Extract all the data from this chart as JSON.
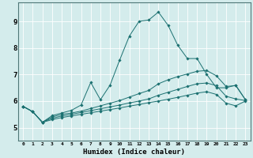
{
  "xlabel": "Humidex (Indice chaleur)",
  "ylabel": "",
  "background_color": "#d4ecec",
  "grid_color": "#ffffff",
  "line_color": "#1a7070",
  "xlim": [
    -0.5,
    23.5
  ],
  "ylim": [
    4.5,
    9.7
  ],
  "xticks": [
    0,
    1,
    2,
    3,
    4,
    5,
    6,
    7,
    8,
    9,
    10,
    11,
    12,
    13,
    14,
    15,
    16,
    17,
    18,
    19,
    20,
    21,
    22,
    23
  ],
  "yticks": [
    5,
    6,
    7,
    8,
    9
  ],
  "series": [
    {
      "x": [
        0,
        1,
        2,
        3,
        4,
        5,
        6,
        7,
        8,
        9,
        10,
        11,
        12,
        13,
        14,
        15,
        16,
        17,
        18,
        19,
        20,
        21,
        22,
        23
      ],
      "y": [
        5.8,
        5.6,
        5.2,
        5.45,
        5.55,
        5.65,
        5.85,
        6.7,
        6.05,
        6.6,
        7.55,
        8.45,
        9.0,
        9.05,
        9.35,
        8.85,
        8.1,
        7.6,
        7.6,
        7.0,
        6.5,
        6.5,
        6.6,
        6.05
      ]
    },
    {
      "x": [
        0,
        1,
        2,
        3,
        4,
        5,
        6,
        7,
        8,
        9,
        10,
        11,
        12,
        13,
        14,
        15,
        16,
        17,
        18,
        19,
        20,
        21,
        22,
        23
      ],
      "y": [
        5.8,
        5.6,
        5.2,
        5.4,
        5.5,
        5.55,
        5.62,
        5.72,
        5.82,
        5.92,
        6.02,
        6.15,
        6.28,
        6.4,
        6.65,
        6.8,
        6.92,
        7.02,
        7.12,
        7.15,
        6.95,
        6.55,
        6.58,
        6.05
      ]
    },
    {
      "x": [
        0,
        1,
        2,
        3,
        4,
        5,
        6,
        7,
        8,
        9,
        10,
        11,
        12,
        13,
        14,
        15,
        16,
        17,
        18,
        19,
        20,
        21,
        22,
        23
      ],
      "y": [
        5.8,
        5.6,
        5.2,
        5.35,
        5.44,
        5.5,
        5.57,
        5.64,
        5.71,
        5.78,
        5.85,
        5.93,
        6.0,
        6.08,
        6.22,
        6.33,
        6.44,
        6.55,
        6.65,
        6.68,
        6.58,
        6.18,
        6.08,
        6.02
      ]
    },
    {
      "x": [
        0,
        1,
        2,
        3,
        4,
        5,
        6,
        7,
        8,
        9,
        10,
        11,
        12,
        13,
        14,
        15,
        16,
        17,
        18,
        19,
        20,
        21,
        22,
        23
      ],
      "y": [
        5.8,
        5.6,
        5.2,
        5.3,
        5.38,
        5.44,
        5.5,
        5.56,
        5.62,
        5.68,
        5.74,
        5.81,
        5.87,
        5.94,
        6.0,
        6.07,
        6.14,
        6.22,
        6.3,
        6.35,
        6.25,
        5.92,
        5.82,
        6.0
      ]
    }
  ]
}
